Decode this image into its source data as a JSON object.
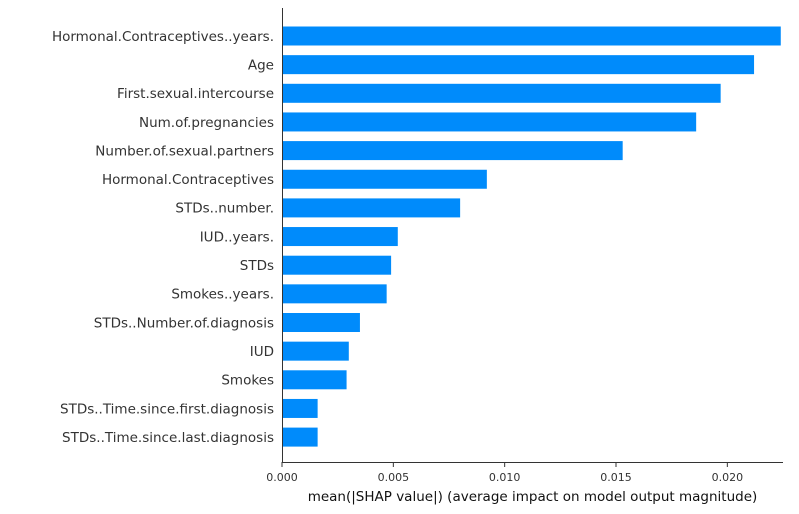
{
  "chart_data": {
    "type": "bar",
    "orientation": "horizontal",
    "title": "",
    "xlabel": "mean(|SHAP value|) (average impact on model output magnitude)",
    "ylabel": "",
    "xlim": [
      0,
      0.0225
    ],
    "xticks": [
      0.0,
      0.005,
      0.01,
      0.015,
      0.02
    ],
    "xtick_labels": [
      "0.000",
      "0.005",
      "0.010",
      "0.015",
      "0.020"
    ],
    "bar_color": "#008bfb",
    "grid": false,
    "categories": [
      "Hormonal.Contraceptives..years.",
      "Age",
      "First.sexual.intercourse",
      "Num.of.pregnancies",
      "Number.of.sexual.partners",
      "Hormonal.Contraceptives",
      "STDs..number.",
      "IUD..years.",
      "STDs",
      "Smokes..years.",
      "STDs..Number.of.diagnosis",
      "IUD",
      "Smokes",
      "STDs..Time.since.first.diagnosis",
      "STDs..Time.since.last.diagnosis"
    ],
    "values": [
      0.0224,
      0.0212,
      0.0197,
      0.0186,
      0.0153,
      0.0092,
      0.008,
      0.0052,
      0.0049,
      0.0047,
      0.0035,
      0.003,
      0.0029,
      0.0016,
      0.0016
    ]
  }
}
